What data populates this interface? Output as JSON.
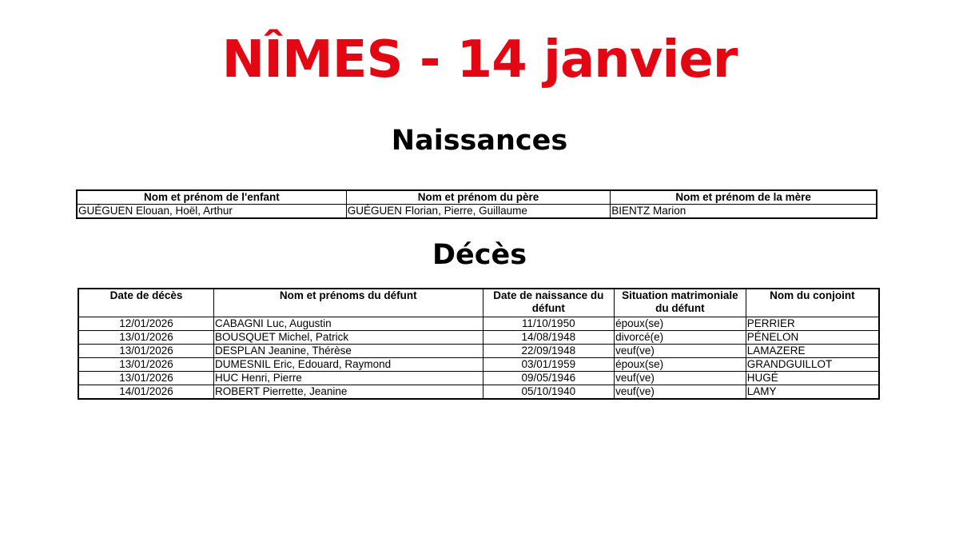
{
  "title": "NÎMES - 14 janvier",
  "births": {
    "heading": "Naissances",
    "columns": [
      "Nom et prénom de l'enfant",
      "Nom et prénom du père",
      "Nom et prénom de la mère"
    ],
    "rows": [
      [
        "GUÉGUEN Elouan, Hoël, Arthur",
        "GUÉGUEN Florian, Pierre, Guillaume",
        "BIENTZ Marion"
      ]
    ]
  },
  "deaths": {
    "heading": "Décès",
    "columns": [
      "Date de décès",
      "Nom et prénoms du défunt",
      "Date de naissance du défunt",
      "Situation matrimoniale du défunt",
      "Nom du conjoint"
    ],
    "rows": [
      [
        "12/01/2026",
        "CABAGNI Luc, Augustin",
        "11/10/1950",
        "époux(se)",
        "PERRIER"
      ],
      [
        "13/01/2026",
        "BOUSQUET Michel, Patrick",
        "14/08/1948",
        "divorcé(e)",
        "PÉNELON"
      ],
      [
        "13/01/2026",
        "DESPLAN Jeanine, Thérèse",
        "22/09/1948",
        "veuf(ve)",
        "LAMAZERE"
      ],
      [
        "13/01/2026",
        "DUMESNIL Eric, Edouard, Raymond",
        "03/01/1959",
        "époux(se)",
        "GRANDGUILLOT"
      ],
      [
        "13/01/2026",
        "HUC Henri, Pierre",
        "09/05/1946",
        "veuf(ve)",
        "HUGÉ"
      ],
      [
        "14/01/2026",
        "ROBERT Pierrette, Jeanine",
        "05/10/1940",
        "veuf(ve)",
        "LAMY"
      ]
    ]
  }
}
